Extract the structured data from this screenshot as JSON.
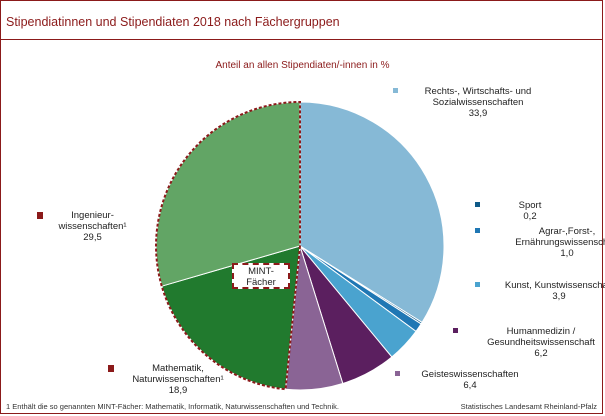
{
  "title": "Stipendiatinnen und Stipendiaten 2018 nach Fächergruppen",
  "footnote": "1 Enthält die so genannten MINT-Fächer: Mathematik, Informatik, Naturwissenschaften und Technik.",
  "source": "Statistisches Landesamt Rheinland-Pfalz",
  "mint_label": [
    "MINT-",
    "Fächer"
  ],
  "chart_data": {
    "type": "pie",
    "title": "Anteil an allen Stipendiaten/-innen in %",
    "start": "12 o'clock, clockwise",
    "slices": [
      {
        "label": [
          "Rechts-, Wirtschafts- und",
          "Sozialwissenschaften"
        ],
        "value": 33.9,
        "value_label": "33,9",
        "color": "#86b9d6",
        "mint": false
      },
      {
        "label": [
          "Sport"
        ],
        "value": 0.2,
        "value_label": "0,2",
        "color": "#0f5a88",
        "mint": false
      },
      {
        "label": [
          "Agrar-,Forst-,",
          "Ernährungswissenschaft"
        ],
        "value": 1.0,
        "value_label": "1,0",
        "color": "#1f77b4",
        "mint": false
      },
      {
        "label": [
          "Kunst, Kunstwissenschaft"
        ],
        "value": 3.9,
        "value_label": "3,9",
        "color": "#4aa3cf",
        "mint": false
      },
      {
        "label": [
          "Humanmedizin /",
          "Gesundheitswissenschaft"
        ],
        "value": 6.2,
        "value_label": "6,2",
        "color": "#5b1f5f",
        "mint": false
      },
      {
        "label": [
          "Geisteswissenschaften"
        ],
        "value": 6.4,
        "value_label": "6,4",
        "color": "#8a6495",
        "mint": false
      },
      {
        "label": [
          "Mathematik,",
          "Naturwissenschaften¹"
        ],
        "value": 18.9,
        "value_label": "18,9",
        "color": "#217a2e",
        "mint": true
      },
      {
        "label": [
          "Ingenieur-",
          "wissenschaften¹"
        ],
        "value": 29.5,
        "value_label": "29,5",
        "color": "#62a565",
        "mint": true
      }
    ],
    "mint_marker_color": "#8b1a1a",
    "mint_outline": "dashed, #8b1a1a"
  }
}
